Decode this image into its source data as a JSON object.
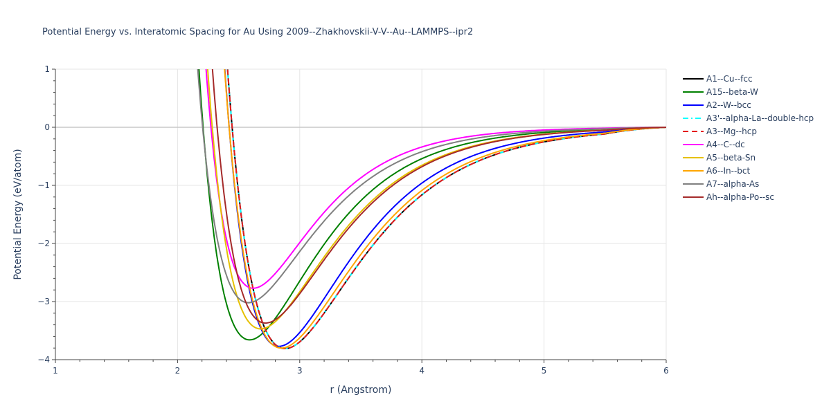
{
  "chart_data": {
    "type": "line",
    "title": "Potential Energy vs. Interatomic Spacing for Au Using 2009--Zhakhovskii-V-V--Au--LAMMPS--ipr2",
    "xlabel": "r (Angstrom)",
    "ylabel": "Potential Energy (eV/atom)",
    "xlim": [
      1,
      6
    ],
    "ylim": [
      -4,
      1
    ],
    "xticks": [
      "1",
      "2",
      "3",
      "4",
      "5",
      "6"
    ],
    "yticks": [
      "1",
      "0",
      "−1",
      "−2",
      "−3",
      "−4"
    ],
    "grid": true,
    "legend_position": "right",
    "series": [
      {
        "name": "A1--Cu--fcc",
        "color": "#000000",
        "dash": "solid",
        "r0": 2.88,
        "e0": -3.81,
        "a": 1.6
      },
      {
        "name": "A15--beta-W",
        "color": "#008000",
        "dash": "solid",
        "r0": 2.59,
        "e0": -3.66,
        "a": 1.82
      },
      {
        "name": "A2--W--bcc",
        "color": "#0000ff",
        "dash": "solid",
        "r0": 2.83,
        "e0": -3.77,
        "a": 1.7
      },
      {
        "name": "A3'--alpha-La--double-hcp",
        "color": "#00ffff",
        "dash": "dashdot",
        "r0": 2.88,
        "e0": -3.81,
        "a": 1.6
      },
      {
        "name": "A3--Mg--hcp",
        "color": "#e41a1c",
        "dash": "dash",
        "r0": 2.88,
        "e0": -3.81,
        "a": 1.6
      },
      {
        "name": "A4--C--dc",
        "color": "#ff00ff",
        "dash": "solid",
        "r0": 2.62,
        "e0": -2.77,
        "a": 2.0
      },
      {
        "name": "A5--beta-Sn",
        "color": "#e6c000",
        "dash": "solid",
        "r0": 2.68,
        "e0": -3.47,
        "a": 1.75
      },
      {
        "name": "A6--In--bct",
        "color": "#ffa500",
        "dash": "solid",
        "r0": 2.85,
        "e0": -3.8,
        "a": 1.62
      },
      {
        "name": "A7--alpha-As",
        "color": "#808080",
        "dash": "solid",
        "r0": 2.58,
        "e0": -3.02,
        "a": 1.85
      },
      {
        "name": "Ah--alpha-Po--sc",
        "color": "#a52a2a",
        "dash": "solid",
        "r0": 2.72,
        "e0": -3.37,
        "a": 1.75
      }
    ]
  }
}
